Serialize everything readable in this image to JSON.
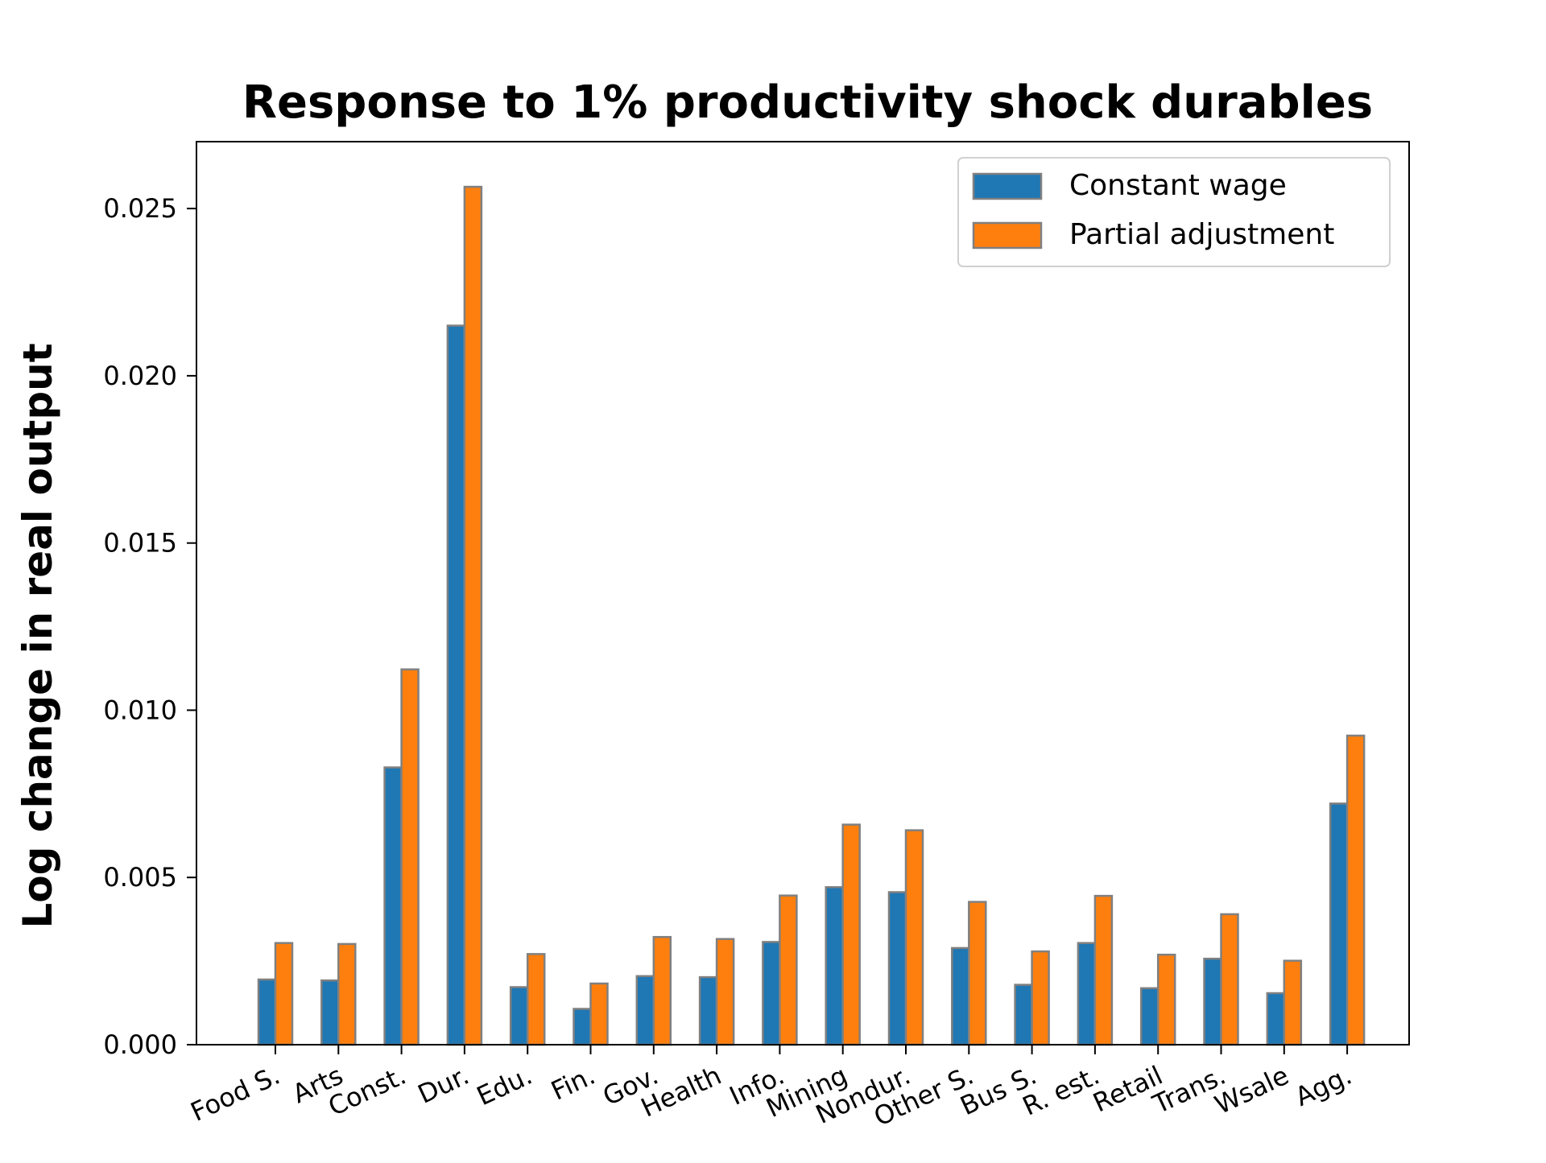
{
  "chart_data": {
    "type": "bar",
    "title": "Response to 1% productivity shock durables",
    "xlabel": "",
    "ylabel": "Log change in real output",
    "ylim": [
      0,
      0.027
    ],
    "yticks": [
      "0.000",
      "0.005",
      "0.010",
      "0.015",
      "0.020",
      "0.025"
    ],
    "ytick_values": [
      0,
      0.005,
      0.01,
      0.015,
      0.02,
      0.025
    ],
    "grid": false,
    "legend_position": "top-right",
    "categories": [
      "Food S.",
      "Arts",
      "Const.",
      "Dur.",
      "Edu.",
      "Fin.",
      "Gov.",
      "Health",
      "Info.",
      "Mining",
      "Nondur.",
      "Other S.",
      "Bus S.",
      "R. est.",
      "Retail",
      "Trans.",
      "Wsale",
      "Agg."
    ],
    "series": [
      {
        "name": "Constant wage",
        "color": "#1f77b4",
        "values": [
          0.00195,
          0.00192,
          0.00829,
          0.0215,
          0.00172,
          0.00107,
          0.00205,
          0.00202,
          0.00307,
          0.00471,
          0.00456,
          0.00289,
          0.00179,
          0.00304,
          0.00169,
          0.00257,
          0.00154,
          0.00721
        ]
      },
      {
        "name": "Partial adjustment",
        "color": "#ff7f0e",
        "values": [
          0.00304,
          0.00301,
          0.01122,
          0.02565,
          0.00271,
          0.00183,
          0.00322,
          0.00316,
          0.00446,
          0.00658,
          0.00641,
          0.00427,
          0.00279,
          0.00445,
          0.00269,
          0.0039,
          0.00251,
          0.00924
        ]
      }
    ],
    "bar_edge_color": "#808080"
  }
}
